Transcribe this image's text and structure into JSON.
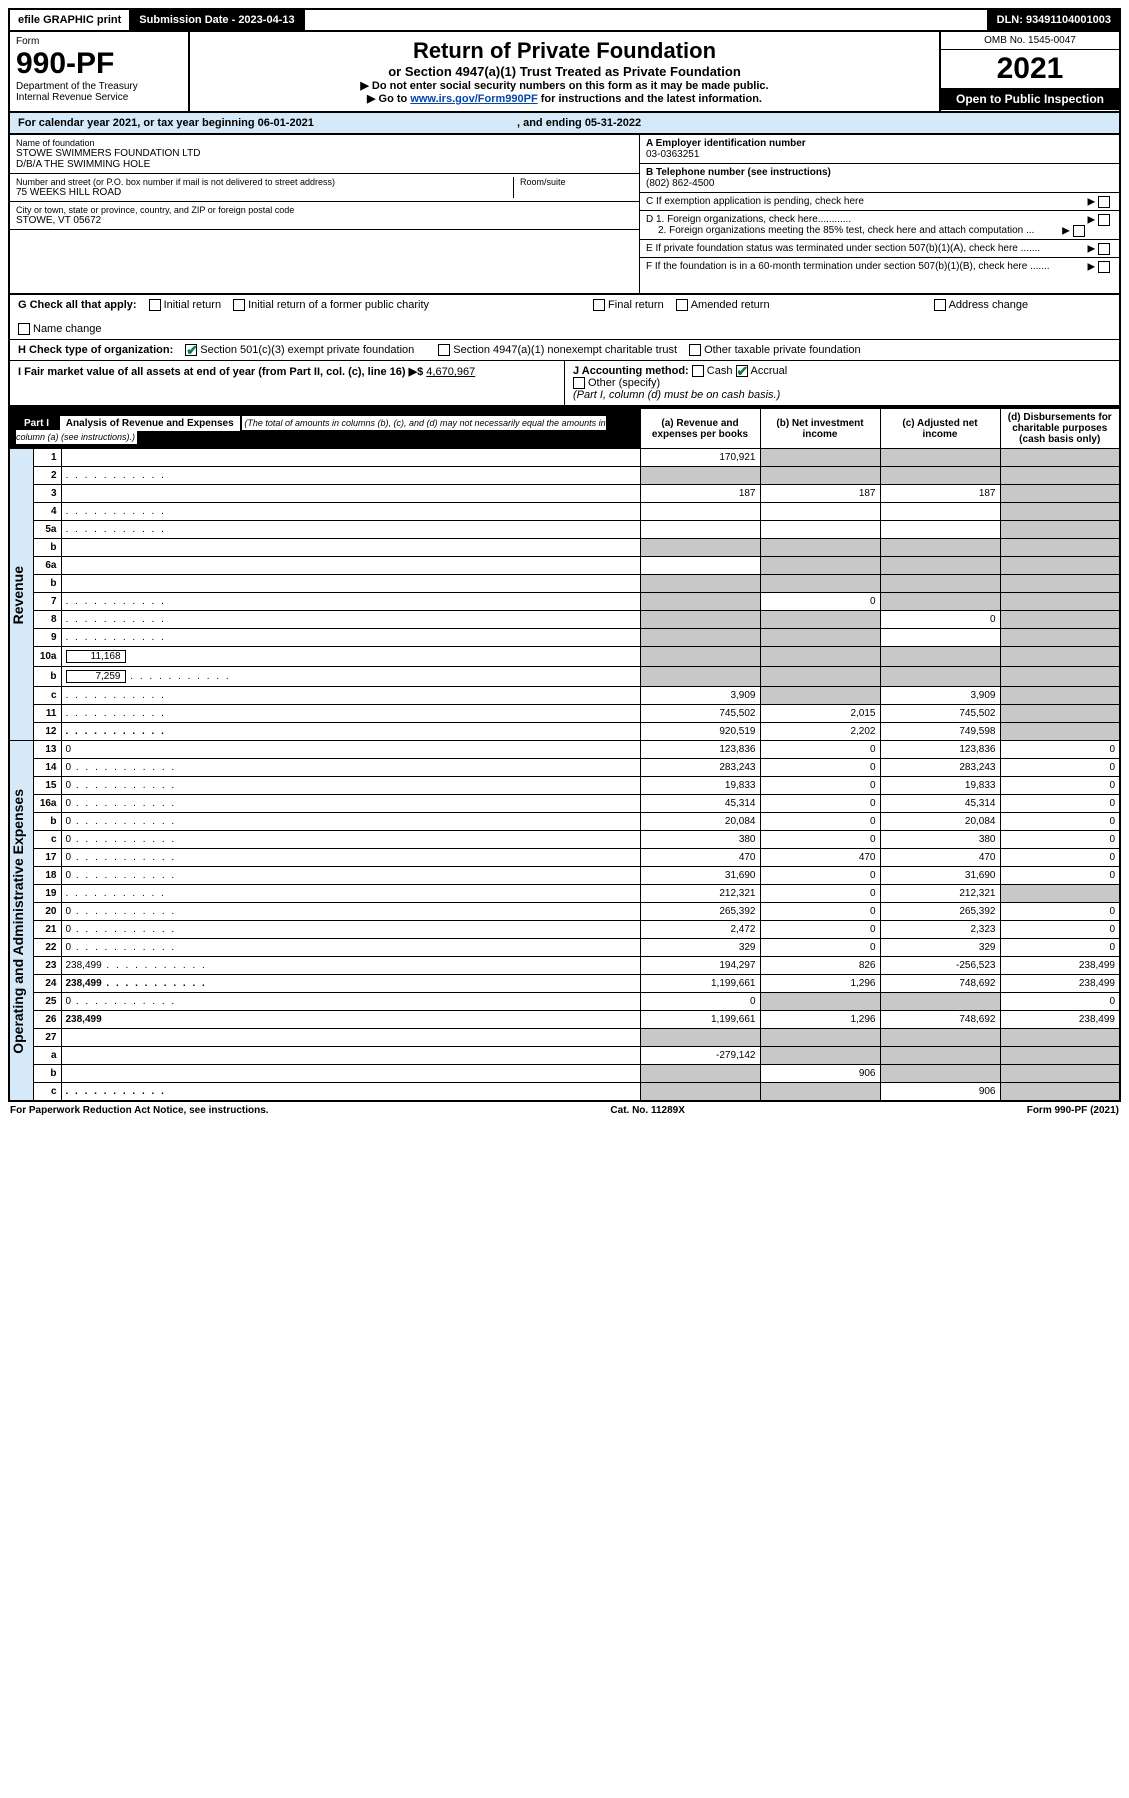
{
  "topbar": {
    "efile": "efile GRAPHIC print",
    "sub_label": "Submission Date - 2023-04-13",
    "dln": "DLN: 93491104001003"
  },
  "header": {
    "form": "Form",
    "num": "990-PF",
    "dept": "Department of the Treasury\nInternal Revenue Service",
    "title": "Return of Private Foundation",
    "sub": "or Section 4947(a)(1) Trust Treated as Private Foundation",
    "note1": "▶ Do not enter social security numbers on this form as it may be made public.",
    "note2": "▶ Go to www.irs.gov/Form990PF for instructions and the latest information.",
    "omb": "OMB No. 1545-0047",
    "year": "2021",
    "open": "Open to Public Inspection"
  },
  "cal": {
    "text": "For calendar year 2021, or tax year beginning 06-01-2021",
    "end": ", and ending 05-31-2022"
  },
  "info": {
    "name_label": "Name of foundation",
    "name1": "STOWE SWIMMERS FOUNDATION LTD",
    "name2": "D/B/A THE SWIMMING HOLE",
    "addr_label": "Number and street (or P.O. box number if mail is not delivered to street address)",
    "addr": "75 WEEKS HILL ROAD",
    "room_label": "Room/suite",
    "city_label": "City or town, state or province, country, and ZIP or foreign postal code",
    "city": "STOWE, VT  05672",
    "ein_label": "A Employer identification number",
    "ein": "03-0363251",
    "tel_label": "B Telephone number (see instructions)",
    "tel": "(802) 862-4500",
    "pending": "C If exemption application is pending, check here",
    "d1": "D 1. Foreign organizations, check here............",
    "d2": "2. Foreign organizations meeting the 85% test, check here and attach computation ...",
    "e": "E If private foundation status was terminated under section 507(b)(1)(A), check here .......",
    "f": "F If the foundation is in a 60-month termination under section 507(b)(1)(B), check here ......."
  },
  "checks": {
    "g_label": "G Check all that apply:",
    "g_opts": [
      "Initial return",
      "Final return",
      "Address change",
      "Initial return of a former public charity",
      "Amended return",
      "Name change"
    ],
    "h_label": "H Check type of organization:",
    "h1": "Section 501(c)(3) exempt private foundation",
    "h2": "Section 4947(a)(1) nonexempt charitable trust",
    "h3": "Other taxable private foundation",
    "i_label": "I Fair market value of all assets at end of year (from Part II, col. (c), line 16) ▶$",
    "i_val": "4,670,967",
    "j_label": "J Accounting method:",
    "j_cash": "Cash",
    "j_accrual": "Accrual",
    "j_other": "Other (specify)",
    "j_note": "(Part I, column (d) must be on cash basis.)"
  },
  "part1": {
    "part_label": "Part I",
    "part_title": "Analysis of Revenue and Expenses",
    "part_note": "(The total of amounts in columns (b), (c), and (d) may not necessarily equal the amounts in column (a) (see instructions).)",
    "col_a": "(a) Revenue and expenses per books",
    "col_b": "(b) Net investment income",
    "col_c": "(c) Adjusted net income",
    "col_d": "(d) Disbursements for charitable purposes (cash basis only)",
    "rev_label": "Revenue",
    "exp_label": "Operating and Administrative Expenses",
    "rows": [
      {
        "n": "1",
        "d": "",
        "a": "170,921",
        "b": "",
        "c": "",
        "shB": true,
        "shC": true,
        "shD": true
      },
      {
        "n": "2",
        "d": "",
        "a": "",
        "b": "",
        "c": "",
        "shA": true,
        "shB": true,
        "shC": true,
        "shD": true,
        "dots": true
      },
      {
        "n": "3",
        "d": "",
        "a": "187",
        "b": "187",
        "c": "187",
        "shD": true
      },
      {
        "n": "4",
        "d": "",
        "a": "",
        "b": "",
        "c": "",
        "shD": true,
        "dots": true
      },
      {
        "n": "5a",
        "d": "",
        "a": "",
        "b": "",
        "c": "",
        "shD": true,
        "dots": true
      },
      {
        "n": "b",
        "d": "",
        "a": "",
        "b": "",
        "c": "",
        "shA": true,
        "shB": true,
        "shC": true,
        "shD": true
      },
      {
        "n": "6a",
        "d": "",
        "a": "",
        "b": "",
        "c": "",
        "shB": true,
        "shC": true,
        "shD": true
      },
      {
        "n": "b",
        "d": "",
        "a": "",
        "b": "",
        "c": "",
        "shA": true,
        "shB": true,
        "shC": true,
        "shD": true
      },
      {
        "n": "7",
        "d": "",
        "a": "",
        "b": "0",
        "c": "",
        "shA": true,
        "shC": true,
        "shD": true,
        "dots": true
      },
      {
        "n": "8",
        "d": "",
        "a": "",
        "b": "",
        "c": "0",
        "shA": true,
        "shB": true,
        "shD": true,
        "dots": true
      },
      {
        "n": "9",
        "d": "",
        "a": "",
        "b": "",
        "c": "",
        "shA": true,
        "shB": true,
        "shD": true,
        "dots": true
      },
      {
        "n": "10a",
        "d": "",
        "v": "11,168",
        "a": "",
        "b": "",
        "c": "",
        "shA": true,
        "shB": true,
        "shC": true,
        "shD": true,
        "inline": true
      },
      {
        "n": "b",
        "d": "",
        "v": "7,259",
        "a": "",
        "b": "",
        "c": "",
        "shA": true,
        "shB": true,
        "shC": true,
        "shD": true,
        "inline": true,
        "dots": true
      },
      {
        "n": "c",
        "d": "",
        "a": "3,909",
        "b": "",
        "c": "3,909",
        "shB": true,
        "shD": true,
        "dots": true
      },
      {
        "n": "11",
        "d": "",
        "a": "745,502",
        "b": "2,015",
        "c": "745,502",
        "shD": true,
        "dots": true
      },
      {
        "n": "12",
        "d": "",
        "a": "920,519",
        "b": "2,202",
        "c": "749,598",
        "shD": true,
        "bold": true,
        "dots": true
      }
    ],
    "exp_rows": [
      {
        "n": "13",
        "d": "0",
        "a": "123,836",
        "b": "0",
        "c": "123,836"
      },
      {
        "n": "14",
        "d": "0",
        "a": "283,243",
        "b": "0",
        "c": "283,243",
        "dots": true
      },
      {
        "n": "15",
        "d": "0",
        "a": "19,833",
        "b": "0",
        "c": "19,833",
        "dots": true
      },
      {
        "n": "16a",
        "d": "0",
        "a": "45,314",
        "b": "0",
        "c": "45,314",
        "dots": true
      },
      {
        "n": "b",
        "d": "0",
        "a": "20,084",
        "b": "0",
        "c": "20,084",
        "dots": true
      },
      {
        "n": "c",
        "d": "0",
        "a": "380",
        "b": "0",
        "c": "380",
        "dots": true
      },
      {
        "n": "17",
        "d": "0",
        "a": "470",
        "b": "470",
        "c": "470",
        "dots": true
      },
      {
        "n": "18",
        "d": "0",
        "a": "31,690",
        "b": "0",
        "c": "31,690",
        "dots": true
      },
      {
        "n": "19",
        "d": "",
        "a": "212,321",
        "b": "0",
        "c": "212,321",
        "shD": true,
        "dots": true
      },
      {
        "n": "20",
        "d": "0",
        "a": "265,392",
        "b": "0",
        "c": "265,392",
        "dots": true
      },
      {
        "n": "21",
        "d": "0",
        "a": "2,472",
        "b": "0",
        "c": "2,323",
        "dots": true
      },
      {
        "n": "22",
        "d": "0",
        "a": "329",
        "b": "0",
        "c": "329",
        "dots": true
      },
      {
        "n": "23",
        "d": "238,499",
        "a": "194,297",
        "b": "826",
        "c": "-256,523",
        "dots": true
      },
      {
        "n": "24",
        "d": "238,499",
        "a": "1,199,661",
        "b": "1,296",
        "c": "748,692",
        "bold": true,
        "dots": true
      },
      {
        "n": "25",
        "d": "0",
        "a": "0",
        "b": "",
        "c": "",
        "shB": true,
        "shC": true,
        "dots": true
      },
      {
        "n": "26",
        "d": "238,499",
        "a": "1,199,661",
        "b": "1,296",
        "c": "748,692",
        "bold": true
      },
      {
        "n": "27",
        "d": "",
        "a": "",
        "b": "",
        "c": "",
        "shA": true,
        "shB": true,
        "shC": true,
        "shD": true
      },
      {
        "n": "a",
        "d": "",
        "a": "-279,142",
        "b": "",
        "c": "",
        "shB": true,
        "shC": true,
        "shD": true,
        "bold": true
      },
      {
        "n": "b",
        "d": "",
        "a": "",
        "b": "906",
        "c": "",
        "shA": true,
        "shC": true,
        "shD": true,
        "bold": true
      },
      {
        "n": "c",
        "d": "",
        "a": "",
        "b": "",
        "c": "906",
        "shA": true,
        "shB": true,
        "shD": true,
        "bold": true,
        "dots": true
      }
    ]
  },
  "footer": {
    "left": "For Paperwork Reduction Act Notice, see instructions.",
    "mid": "Cat. No. 11289X",
    "right": "Form 990-PF (2021)"
  }
}
